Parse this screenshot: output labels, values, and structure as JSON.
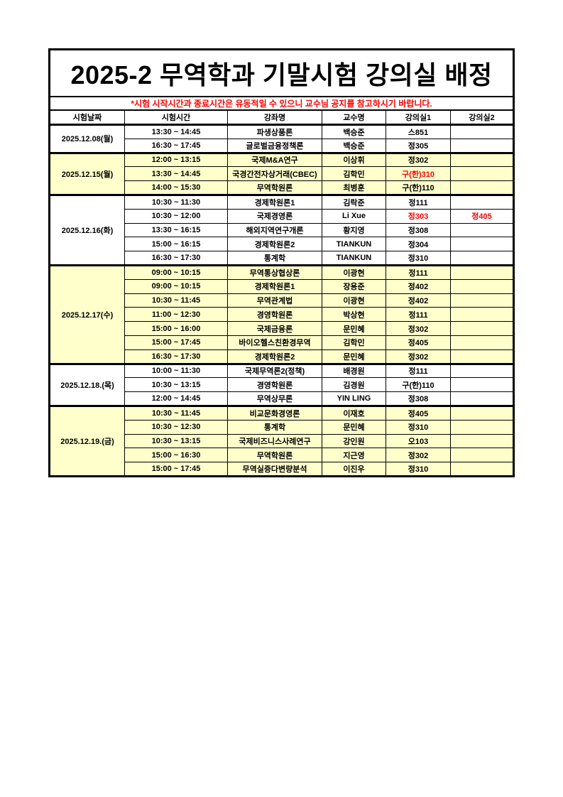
{
  "page": {
    "title": "2025-2 무역학과 기말시험 강의실 배정",
    "notice": "*시험 시작시간과 종료시간은 유동적일 수 있으니 교수님 공지를 참고하시기 바랍니다.",
    "colors": {
      "notice_red": "#ff0000",
      "highlight_yellow": "#ffffcc",
      "border_black": "#000000",
      "background_white": "#ffffff"
    }
  },
  "table": {
    "headers": [
      "시험날짜",
      "시험시간",
      "강좌명",
      "교수명",
      "강의실1",
      "강의실2"
    ],
    "groups": [
      {
        "date": "2025.12.08(월)",
        "highlight": false,
        "rows": [
          {
            "time": "13:30 ~ 14:45",
            "course": "파생상품론",
            "professor": "백승준",
            "room1": "스851",
            "room2": ""
          },
          {
            "time": "16:30 ~ 17:45",
            "course": "글로벌금융정책론",
            "professor": "백승준",
            "room1": "정305",
            "room2": ""
          }
        ]
      },
      {
        "date": "2025.12.15(월)",
        "highlight": true,
        "rows": [
          {
            "time": "12:00 ~ 13:15",
            "course": "국제M&A연구",
            "professor": "이상휘",
            "room1": "정302",
            "room2": ""
          },
          {
            "time": "13:30 ~ 14:45",
            "course": "국경간전자상거래(CBEC)",
            "professor": "김학민",
            "room1": "구(한)310",
            "room1_red": true,
            "room2": ""
          },
          {
            "time": "14:00 ~ 15:30",
            "course": "무역학원론",
            "professor": "최병훈",
            "room1": "구(한)110",
            "room2": ""
          }
        ]
      },
      {
        "date": "2025.12.16(화)",
        "highlight": false,
        "rows": [
          {
            "time": "10:30 ~ 11:30",
            "course": "경제학원론1",
            "professor": "김락준",
            "room1": "정111",
            "room2": ""
          },
          {
            "time": "10:30 ~ 12:00",
            "course": "국제경영론",
            "professor": "Li Xue",
            "room1": "정303",
            "room1_red": true,
            "room2": "정405",
            "room2_red": true
          },
          {
            "time": "13:30 ~ 16:15",
            "course": "해외지역연구개론",
            "professor": "황지영",
            "room1": "정308",
            "room2": ""
          },
          {
            "time": "15:00 ~ 16:15",
            "course": "경제학원론2",
            "professor": "TIANKUN",
            "room1": "정304",
            "room2": ""
          },
          {
            "time": "16:30 ~ 17:30",
            "course": "통계학",
            "professor": "TIANKUN",
            "room1": "정310",
            "room2": ""
          }
        ]
      },
      {
        "date": "2025.12.17(수)",
        "highlight": true,
        "rows": [
          {
            "time": "09:00 ~ 10:15",
            "course": "무역통상협상론",
            "professor": "이광현",
            "room1": "정111",
            "room2": ""
          },
          {
            "time": "09:00 ~ 10:15",
            "course": "경제학원론1",
            "professor": "장용준",
            "room1": "정402",
            "room2": ""
          },
          {
            "time": "10:30 ~ 11:45",
            "course": "무역관계법",
            "professor": "이광현",
            "room1": "정402",
            "room2": ""
          },
          {
            "time": "11:00 ~ 12:30",
            "course": "경영학원론",
            "professor": "박상현",
            "room1": "정111",
            "room2": ""
          },
          {
            "time": "15:00 ~ 16:00",
            "course": "국제금융론",
            "professor": "문민혜",
            "room1": "정302",
            "room2": ""
          },
          {
            "time": "15:00 ~ 17:45",
            "course": "바이오헬스친환경무역",
            "professor": "김학민",
            "room1": "정405",
            "room2": ""
          },
          {
            "time": "16:30 ~ 17:30",
            "course": "경제학원론2",
            "professor": "문민혜",
            "room1": "정302",
            "room2": ""
          }
        ]
      },
      {
        "date": "2025.12.18.(목)",
        "highlight": false,
        "rows": [
          {
            "time": "10:00 ~ 11:30",
            "course": "국제무역론2(정책)",
            "professor": "배경원",
            "room1": "정111",
            "room2": ""
          },
          {
            "time": "10:30 ~ 13:15",
            "course": "경영학원론",
            "professor": "김경원",
            "room1": "구(한)110",
            "room2": ""
          },
          {
            "time": "12:00 ~ 14:45",
            "course": "무역상무론",
            "professor": "YIN LING",
            "room1": "정308",
            "room2": ""
          }
        ]
      },
      {
        "date": "2025.12.19.(금)",
        "highlight": true,
        "rows": [
          {
            "time": "10:30 ~ 11:45",
            "course": "비교문화경영론",
            "professor": "이재호",
            "room1": "정405",
            "room2": ""
          },
          {
            "time": "10:30 ~ 12:30",
            "course": "통계학",
            "professor": "문민혜",
            "room1": "정310",
            "room2": ""
          },
          {
            "time": "10:30 ~ 13:15",
            "course": "국제비즈니스사례연구",
            "professor": "강인원",
            "room1": "오103",
            "room2": ""
          },
          {
            "time": "15:00 ~ 16:30",
            "course": "무역학원론",
            "professor": "지근영",
            "room1": "정302",
            "room2": ""
          },
          {
            "time": "15:00 ~ 17:45",
            "course": "무역실증다변량분석",
            "professor": "이진우",
            "room1": "정310",
            "room2": ""
          }
        ]
      }
    ]
  }
}
